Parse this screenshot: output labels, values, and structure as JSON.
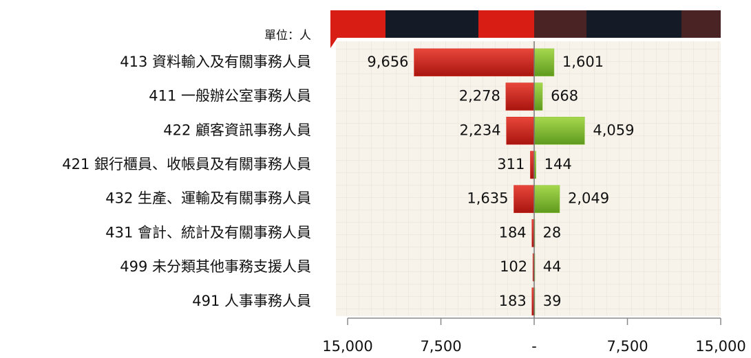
{
  "chart_data": {
    "type": "diverging-bar",
    "unit_label": "單位：人",
    "categories": [
      "413 資料輸入及有關事務人員",
      "411 一般辦公室事務人員",
      "422 顧客資訊事務人員",
      "421 銀行櫃員、收帳員及有關事務人員",
      "432 生產、運輸及有關事務人員",
      "431 會計、統計及有關事務人員",
      "499 未分類其他事務支援人員",
      "491 人事事務人員"
    ],
    "series": [
      {
        "color": "#d42a20",
        "side": "left",
        "values": [
          9656,
          2278,
          2234,
          311,
          1635,
          184,
          102,
          183
        ],
        "value_labels": [
          "9,656",
          "2,278",
          "2,234",
          "311",
          "1,635",
          "184",
          "102",
          "183"
        ]
      },
      {
        "color": "#8cc43a",
        "side": "right",
        "values": [
          1601,
          668,
          4059,
          144,
          2049,
          28,
          44,
          39
        ],
        "value_labels": [
          "1,601",
          "668",
          "4,059",
          "144",
          "2,049",
          "28",
          "44",
          "39"
        ]
      }
    ],
    "xlim": [
      -15000,
      15000
    ],
    "xticks": [
      {
        "value": -15000,
        "label": "15,000"
      },
      {
        "value": -7500,
        "label": "7,500"
      },
      {
        "value": 0,
        "label": "-"
      },
      {
        "value": 7500,
        "label": "7,500"
      },
      {
        "value": 15000,
        "label": "15,000"
      }
    ]
  }
}
